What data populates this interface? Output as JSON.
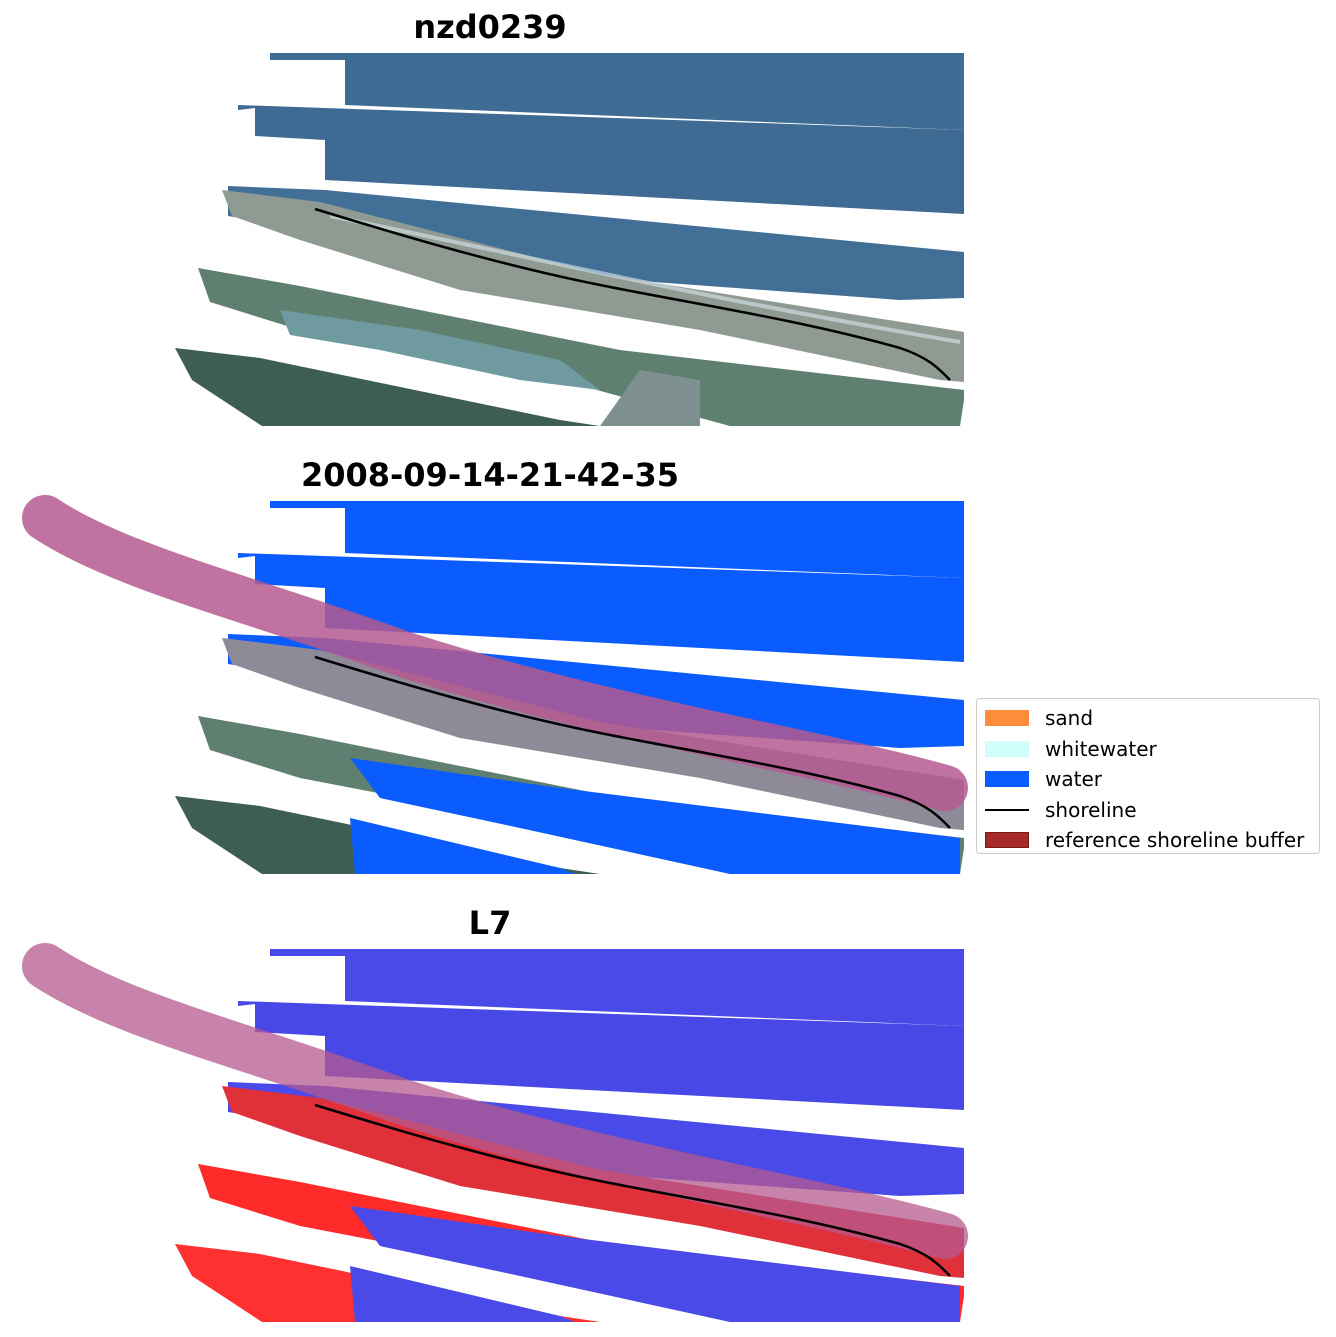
{
  "panels": [
    {
      "title": "nzd0239",
      "view": "rgb"
    },
    {
      "title": "2008-09-14-21-42-35",
      "view": "classified"
    },
    {
      "title": "L7",
      "view": "index"
    }
  ],
  "legend": {
    "items": [
      {
        "label": "sand",
        "kind": "patch",
        "color": "#ff8c3a"
      },
      {
        "label": "whitewater",
        "kind": "patch",
        "color": "#cffffb"
      },
      {
        "label": "water",
        "kind": "patch",
        "color": "#0a5cff"
      },
      {
        "label": "shoreline",
        "kind": "line",
        "color": "#000000"
      },
      {
        "label": "reference shoreline buffer",
        "kind": "patch",
        "color": "#a52a2a"
      }
    ]
  },
  "colors": {
    "ocean_rgb": "#3e6b94",
    "land_rgb": "#7f948a",
    "vegetation_rgb": "#4a7650",
    "classified_water": "#0a5cff",
    "buffer_overlay": "#b5598f",
    "index_positive": "#ff2a2a",
    "index_negative": "#4a4ae8",
    "shoreline": "#000000"
  }
}
